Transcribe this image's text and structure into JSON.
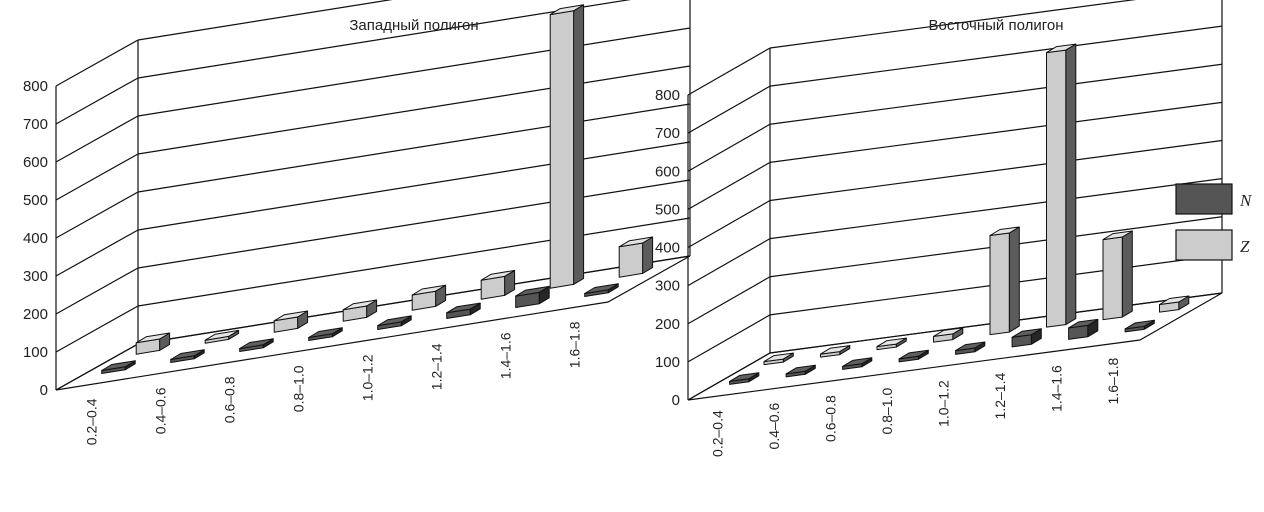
{
  "chart_data": [
    {
      "type": "bar",
      "title": "Западный полигон",
      "categories": [
        "0.2–0.4",
        "0.4–0.6",
        "0.6–0.8",
        "0.8–1.0",
        "1.0–1.2",
        "1.2–1.4",
        "1.4–1.6",
        "1.6–1.8"
      ],
      "series": [
        {
          "name": "N",
          "color": "#555555",
          "values": [
            3,
            2,
            3,
            5,
            10,
            15,
            30,
            0
          ]
        },
        {
          "name": "Z",
          "color": "#cccccc",
          "values": [
            30,
            5,
            30,
            30,
            40,
            50,
            720,
            80
          ]
        }
      ],
      "ylim": [
        0,
        800
      ],
      "yticks": [
        0,
        100,
        200,
        300,
        400,
        500,
        600,
        700,
        800
      ],
      "grid": true,
      "legend": "right"
    },
    {
      "type": "bar",
      "title": "Восточный полигон",
      "categories": [
        "0.2–0.4",
        "0.4–0.6",
        "0.6–0.8",
        "0.8–1.0",
        "1.0–1.2",
        "1.2–1.4",
        "1.4–1.6",
        "1.6–1.8"
      ],
      "series": [
        {
          "name": "N",
          "color": "#555555",
          "values": [
            2,
            3,
            4,
            5,
            10,
            25,
            30,
            5
          ]
        },
        {
          "name": "Z",
          "color": "#cccccc",
          "values": [
            5,
            3,
            5,
            15,
            260,
            720,
            210,
            20
          ]
        }
      ],
      "ylim": [
        0,
        800
      ],
      "yticks": [
        0,
        100,
        200,
        300,
        400,
        500,
        600,
        700,
        800
      ],
      "grid": true,
      "legend": "right"
    }
  ],
  "legend": [
    {
      "label": "N",
      "color": "#555555"
    },
    {
      "label": "Z",
      "color": "#cccccc"
    }
  ]
}
